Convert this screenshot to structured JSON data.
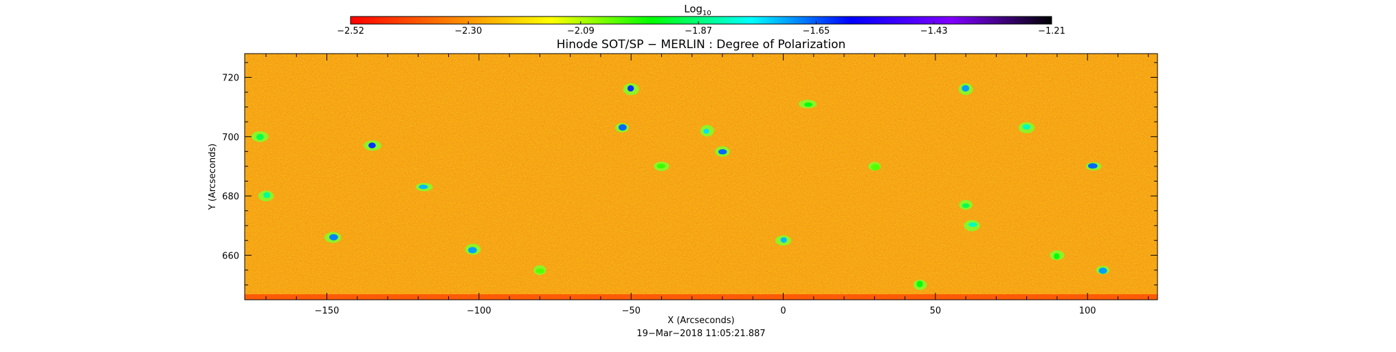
{
  "chart_data": {
    "type": "heatmap",
    "title": "Hinode SOT/SP − MERLIN : Degree of Polarization",
    "xlabel": "X (Arcseconds)",
    "ylabel": "Y (Arcseconds)",
    "timestamp": "19−Mar−2018 11:05:21.887",
    "xlim": [
      -177,
      123
    ],
    "ylim": [
      645,
      728
    ],
    "x_ticks": [
      {
        "value": -150,
        "label": "−150"
      },
      {
        "value": -100,
        "label": "−100"
      },
      {
        "value": -50,
        "label": "−50"
      },
      {
        "value": 0,
        "label": "0"
      },
      {
        "value": 50,
        "label": "50"
      },
      {
        "value": 100,
        "label": "100"
      }
    ],
    "y_ticks": [
      {
        "value": 660,
        "label": "660"
      },
      {
        "value": 680,
        "label": "680"
      },
      {
        "value": 700,
        "label": "700"
      },
      {
        "value": 720,
        "label": "720"
      }
    ],
    "colorbar": {
      "title_base": "Log",
      "title_sub": "10",
      "range": [
        -2.52,
        -1.21
      ],
      "ticks": [
        {
          "value": -2.52,
          "label": "−2.52"
        },
        {
          "value": -2.3,
          "label": "−2.30"
        },
        {
          "value": -2.09,
          "label": "−2.09"
        },
        {
          "value": -1.87,
          "label": "−1.87"
        },
        {
          "value": -1.65,
          "label": "−1.65"
        },
        {
          "value": -1.43,
          "label": "−1.43"
        },
        {
          "value": -1.21,
          "label": "−1.21"
        }
      ],
      "colors": [
        "#ff0000",
        "#ff8000",
        "#ffff00",
        "#00ff00",
        "#00ffff",
        "#0000ff",
        "#8000ff",
        "#000000"
      ]
    },
    "background_level": -2.28,
    "features": [
      {
        "x": -50,
        "y": 716,
        "level": -1.62
      },
      {
        "x": -53,
        "y": 703,
        "level": -1.66
      },
      {
        "x": -135,
        "y": 697,
        "level": -1.62
      },
      {
        "x": -25,
        "y": 702,
        "level": -1.75
      },
      {
        "x": -20,
        "y": 695,
        "level": -1.66
      },
      {
        "x": -118,
        "y": 683,
        "level": -1.72
      },
      {
        "x": -148,
        "y": 666,
        "level": -1.68
      },
      {
        "x": -102,
        "y": 662,
        "level": -1.7
      },
      {
        "x": 0,
        "y": 665,
        "level": -1.72
      },
      {
        "x": 60,
        "y": 677,
        "level": -1.9
      },
      {
        "x": 62,
        "y": 670,
        "level": -1.82
      },
      {
        "x": 60,
        "y": 716,
        "level": -1.7
      },
      {
        "x": 102,
        "y": 690,
        "level": -1.66
      },
      {
        "x": 80,
        "y": 703,
        "level": -1.82
      },
      {
        "x": 8,
        "y": 711,
        "level": -1.95
      },
      {
        "x": -172,
        "y": 700,
        "level": -1.9
      },
      {
        "x": -170,
        "y": 680,
        "level": -1.85
      },
      {
        "x": -40,
        "y": 690,
        "level": -2.0
      },
      {
        "x": 30,
        "y": 690,
        "level": -2.02
      },
      {
        "x": 90,
        "y": 660,
        "level": -1.95
      },
      {
        "x": -80,
        "y": 655,
        "level": -2.02
      },
      {
        "x": 45,
        "y": 650,
        "level": -1.95
      },
      {
        "x": 105,
        "y": 655,
        "level": -1.7
      }
    ]
  }
}
